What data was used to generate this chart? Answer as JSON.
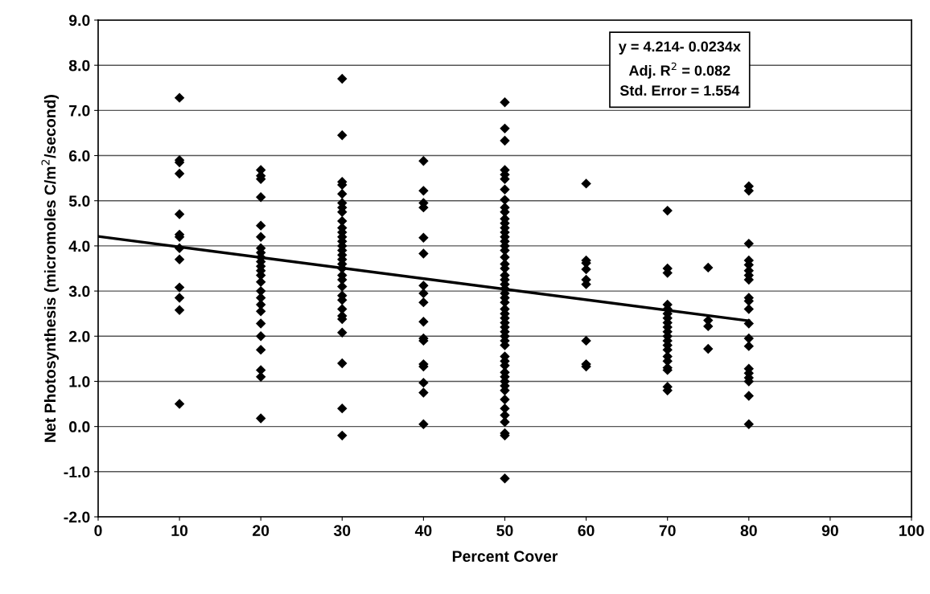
{
  "chart_data": {
    "type": "scatter",
    "xlabel": "Percent Cover",
    "ylabel": "Net Photosynthesis (micromoles C/m$^{2}$/second)",
    "xlim": [
      0,
      100
    ],
    "xticks": [
      0,
      10,
      20,
      30,
      40,
      50,
      60,
      70,
      80,
      90,
      100
    ],
    "ylim": [
      -2,
      9
    ],
    "yticks": [
      {
        "value": -2,
        "label": "-2.0"
      },
      {
        "value": -1,
        "label": "-1.0"
      },
      {
        "value": 0,
        "label": "0.0"
      },
      {
        "value": 1,
        "label": "1.0"
      },
      {
        "value": 2,
        "label": "2.0"
      },
      {
        "value": 3,
        "label": "3.0"
      },
      {
        "value": 4,
        "label": "4.0"
      },
      {
        "value": 5,
        "label": "5.0"
      },
      {
        "value": 6,
        "label": "6.0"
      },
      {
        "value": 7,
        "label": "7.0"
      },
      {
        "value": 8,
        "label": "8.0"
      },
      {
        "value": 9,
        "label": "9.0"
      }
    ],
    "grid": "y",
    "marker": "diamond",
    "annotations": [
      "y = 4.214- 0.0234x\nAdj. R$^{2}$ = 0.082\nStd. Error = 1.554"
    ],
    "series": [
      {
        "color": "#000000",
        "x": [
          10,
          10,
          10,
          10,
          10,
          10,
          10,
          10,
          10,
          10,
          10,
          10,
          10,
          20,
          20,
          20,
          20,
          20,
          20,
          20,
          20,
          20,
          20,
          20,
          20,
          20,
          20,
          20,
          20,
          20,
          20,
          20,
          20,
          20,
          20,
          20,
          20,
          30,
          30,
          30,
          30,
          30,
          30,
          30,
          30,
          30,
          30,
          30,
          30,
          30,
          30,
          30,
          30,
          30,
          30,
          30,
          30,
          30,
          30,
          30,
          30,
          30,
          30,
          30,
          30,
          30,
          30,
          30,
          40,
          40,
          40,
          40,
          40,
          40,
          40,
          40,
          40,
          40,
          40,
          40,
          40,
          40,
          40,
          40,
          40,
          50,
          50,
          50,
          50,
          50,
          50,
          50,
          50,
          50,
          50,
          50,
          50,
          50,
          50,
          50,
          50,
          50,
          50,
          50,
          50,
          50,
          50,
          50,
          50,
          50,
          50,
          50,
          50,
          50,
          50,
          50,
          50,
          50,
          50,
          50,
          50,
          50,
          50,
          50,
          50,
          50,
          50,
          50,
          50,
          50,
          50,
          50,
          50,
          50,
          50,
          50,
          50,
          60,
          60,
          60,
          60,
          60,
          60,
          60,
          60,
          60,
          70,
          70,
          70,
          70,
          70,
          70,
          70,
          70,
          70,
          70,
          70,
          70,
          70,
          70,
          70,
          70,
          70,
          70,
          70,
          70,
          75,
          75,
          75,
          75,
          80,
          80,
          80,
          80,
          80,
          80,
          80,
          80,
          80,
          80,
          80,
          80,
          80,
          80,
          80,
          80,
          80,
          80,
          80,
          80
        ],
        "values": [
          7.28,
          5.9,
          5.85,
          5.6,
          4.7,
          4.25,
          4.2,
          3.95,
          3.7,
          3.08,
          2.85,
          2.58,
          0.5,
          5.68,
          5.55,
          5.48,
          5.08,
          4.45,
          4.2,
          3.95,
          3.85,
          3.75,
          3.65,
          3.55,
          3.45,
          3.35,
          3.2,
          3.0,
          2.85,
          2.7,
          2.55,
          2.28,
          2.0,
          1.7,
          1.25,
          1.1,
          0.18,
          7.7,
          6.45,
          5.42,
          5.35,
          5.15,
          4.95,
          4.85,
          4.75,
          4.55,
          4.4,
          4.3,
          4.2,
          4.1,
          4.0,
          3.9,
          3.8,
          3.7,
          3.6,
          3.5,
          3.35,
          3.25,
          3.1,
          2.9,
          2.8,
          2.6,
          2.45,
          2.38,
          2.08,
          1.4,
          0.4,
          -0.2,
          5.88,
          5.22,
          4.95,
          4.85,
          4.18,
          3.83,
          3.12,
          2.95,
          2.75,
          2.32,
          1.95,
          1.9,
          1.38,
          1.33,
          0.97,
          0.75,
          0.05,
          7.18,
          6.6,
          6.33,
          5.68,
          5.58,
          5.48,
          5.25,
          5.02,
          4.85,
          4.75,
          4.6,
          4.5,
          4.4,
          4.3,
          4.2,
          4.1,
          4.0,
          3.9,
          3.75,
          3.6,
          3.5,
          3.35,
          3.25,
          3.15,
          3.05,
          2.95,
          2.85,
          2.75,
          2.6,
          2.5,
          2.4,
          2.3,
          2.2,
          2.1,
          2.0,
          1.9,
          1.8,
          1.55,
          1.45,
          1.35,
          1.2,
          1.1,
          1.0,
          0.9,
          0.8,
          0.6,
          0.4,
          0.25,
          0.1,
          -0.15,
          -0.2,
          -1.15,
          5.38,
          3.68,
          3.62,
          3.48,
          3.25,
          3.15,
          1.9,
          1.38,
          1.33,
          4.78,
          3.5,
          3.4,
          2.7,
          2.6,
          2.5,
          2.4,
          2.3,
          2.2,
          2.1,
          2.0,
          1.9,
          1.8,
          1.7,
          1.55,
          1.45,
          1.3,
          1.25,
          0.88,
          0.8,
          3.52,
          2.35,
          2.22,
          1.72,
          5.32,
          5.22,
          4.05,
          3.68,
          3.58,
          3.45,
          3.35,
          3.25,
          2.85,
          2.78,
          2.6,
          2.28,
          1.95,
          1.78,
          1.28,
          1.18,
          1.08,
          1.0,
          0.68,
          0.05
        ]
      },
      {
        "type": "line",
        "color": "#000000",
        "x": [
          0,
          80
        ],
        "values": [
          4.21,
          2.34
        ],
        "marker": "none",
        "line_style": "solid"
      }
    ]
  }
}
